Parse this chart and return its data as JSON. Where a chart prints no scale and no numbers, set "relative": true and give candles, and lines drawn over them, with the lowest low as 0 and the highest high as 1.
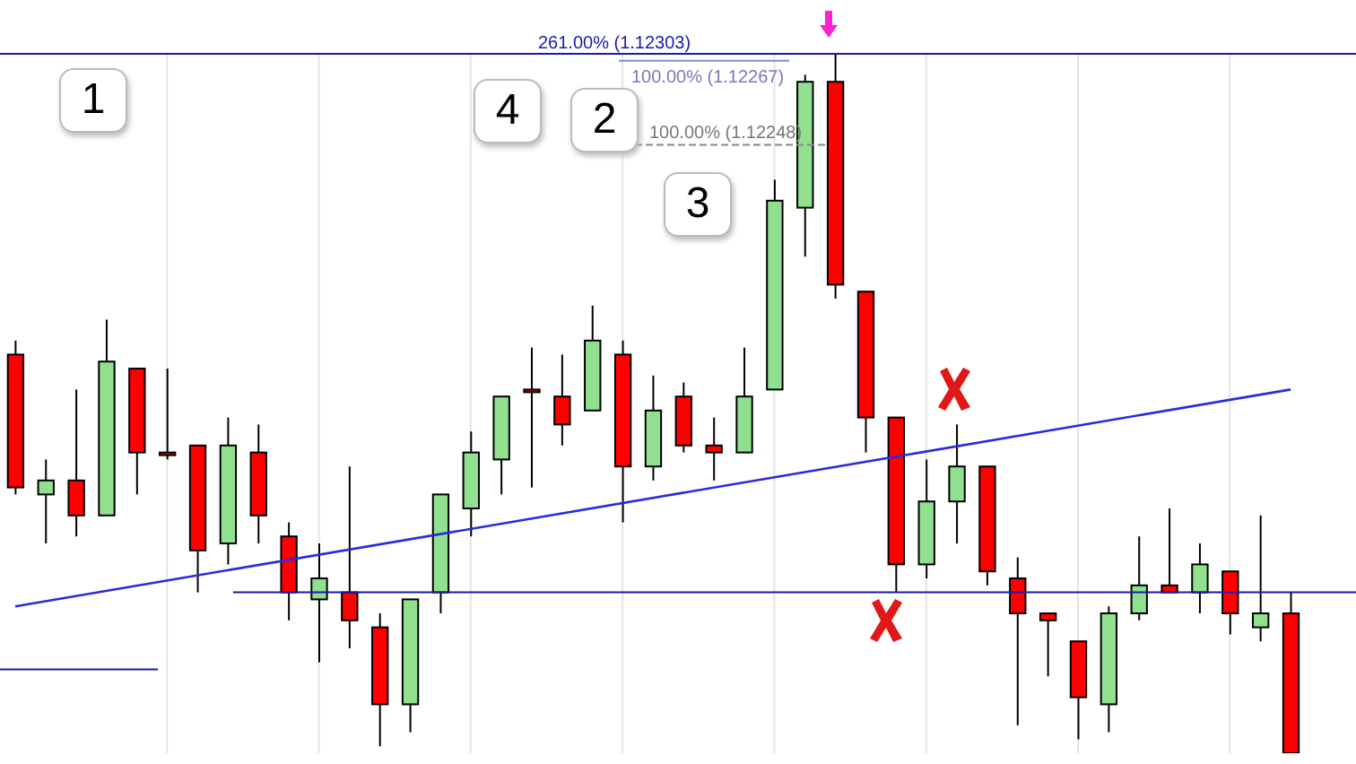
{
  "chart_data": {
    "type": "candlestick",
    "relative": true,
    "categories": [
      null,
      null,
      null,
      null,
      null,
      null,
      null,
      null,
      null,
      null,
      null,
      null,
      null,
      null,
      null,
      null,
      null,
      null,
      null,
      null,
      null,
      null,
      null,
      null,
      null,
      null,
      null,
      null,
      null,
      null,
      null,
      null,
      null,
      null,
      null,
      null,
      null,
      null,
      null,
      null,
      null,
      null,
      null
    ],
    "ohlc": [
      [
        0.57,
        0.59,
        0.37,
        0.38
      ],
      [
        0.37,
        0.42,
        0.3,
        0.39
      ],
      [
        0.39,
        0.52,
        0.31,
        0.34
      ],
      [
        0.34,
        0.62,
        0.34,
        0.56
      ],
      [
        0.55,
        0.55,
        0.37,
        0.43
      ],
      [
        0.43,
        0.55,
        0.42,
        0.43
      ],
      [
        0.44,
        0.44,
        0.23,
        0.29
      ],
      [
        0.3,
        0.48,
        0.27,
        0.44
      ],
      [
        0.43,
        0.47,
        0.3,
        0.34
      ],
      [
        0.31,
        0.33,
        0.19,
        0.23
      ],
      [
        0.22,
        0.3,
        0.13,
        0.25
      ],
      [
        0.23,
        0.41,
        0.15,
        0.19
      ],
      [
        0.18,
        0.2,
        0.01,
        0.07
      ],
      [
        0.07,
        0.22,
        0.03,
        0.22
      ],
      [
        0.23,
        0.37,
        0.2,
        0.37
      ],
      [
        0.35,
        0.46,
        0.31,
        0.43
      ],
      [
        0.42,
        0.51,
        0.37,
        0.51
      ],
      [
        0.52,
        0.58,
        0.38,
        0.52
      ],
      [
        0.51,
        0.57,
        0.44,
        0.47
      ],
      [
        0.49,
        0.64,
        0.49,
        0.59
      ],
      [
        0.57,
        0.59,
        0.33,
        0.41
      ],
      [
        0.41,
        0.54,
        0.39,
        0.49
      ],
      [
        0.51,
        0.53,
        0.43,
        0.44
      ],
      [
        0.44,
        0.48,
        0.39,
        0.43
      ],
      [
        0.43,
        0.58,
        0.43,
        0.51
      ],
      [
        0.52,
        0.82,
        0.52,
        0.79
      ],
      [
        0.78,
        0.97,
        0.71,
        0.96
      ],
      [
        0.96,
        1,
        0.65,
        0.67
      ],
      [
        0.66,
        0.66,
        0.43,
        0.48
      ],
      [
        0.48,
        0.48,
        0.23,
        0.27
      ],
      [
        0.27,
        0.42,
        0.25,
        0.36
      ],
      [
        0.36,
        0.47,
        0.3,
        0.41
      ],
      [
        0.41,
        0.41,
        0.24,
        0.26
      ],
      [
        0.25,
        0.28,
        0.04,
        0.2
      ],
      [
        0.2,
        0.2,
        0.11,
        0.19
      ],
      [
        0.16,
        0.16,
        0.02,
        0.08
      ],
      [
        0.07,
        0.21,
        0.03,
        0.2
      ],
      [
        0.2,
        0.31,
        0.19,
        0.24
      ],
      [
        0.24,
        0.35,
        0.23,
        0.23
      ],
      [
        0.23,
        0.3,
        0.2,
        0.27
      ],
      [
        0.26,
        0.26,
        0.17,
        0.2
      ],
      [
        0.18,
        0.34,
        0.16,
        0.2
      ],
      [
        0.2,
        0.23,
        0,
        0
      ]
    ],
    "colors": [
      "#ff0000",
      "#90e090",
      "#ff0000",
      "#90e090",
      "#ff0000",
      "#ff0000",
      "#ff0000",
      "#90e090",
      "#ff0000",
      "#ff0000",
      "#90e090",
      "#ff0000",
      "#ff0000",
      "#90e090",
      "#90e090",
      "#90e090",
      "#90e090",
      "#ff0000",
      "#ff0000",
      "#90e090",
      "#ff0000",
      "#90e090",
      "#ff0000",
      "#ff0000",
      "#90e090",
      "#90e090",
      "#90e090",
      "#ff0000",
      "#ff0000",
      "#ff0000",
      "#90e090",
      "#90e090",
      "#ff0000",
      "#ff0000",
      "#ff0000",
      "#ff0000",
      "#90e090",
      "#90e090",
      "#ff0000",
      "#90e090",
      "#ff0000",
      "#90e090",
      "#ff0000"
    ],
    "series": [
      {
        "type": "line",
        "color": "#2a2ae0",
        "values": [
          0.21,
          null,
          null,
          null,
          null,
          null,
          null,
          null,
          null,
          null,
          null,
          null,
          null,
          null,
          null,
          null,
          null,
          null,
          null,
          null,
          null,
          null,
          null,
          null,
          null,
          null,
          null,
          null,
          null,
          null,
          null,
          null,
          null,
          null,
          null,
          null,
          null,
          null,
          null,
          null,
          null,
          null,
          0.52
        ]
      }
    ],
    "ref_lines": [
      {
        "axis": "y",
        "value": 1,
        "color": "#1a1aa8"
      },
      {
        "axis": "y",
        "value": 0.99,
        "color": "#8a8ac8"
      },
      {
        "axis": "y",
        "value": 0.87,
        "color": "#888888",
        "line_style": "dashed"
      },
      {
        "axis": "y",
        "value": 0.23,
        "color": "#1a1aa8"
      },
      {
        "axis": "y",
        "value": 0.12,
        "color": "#1a1aa8"
      }
    ],
    "annotations": [
      "1",
      "4",
      "2",
      "3",
      "261.00% (1.12303)",
      "100.00% (1.12267)",
      "100.00% (1.12248)"
    ],
    "grid": "x"
  }
}
